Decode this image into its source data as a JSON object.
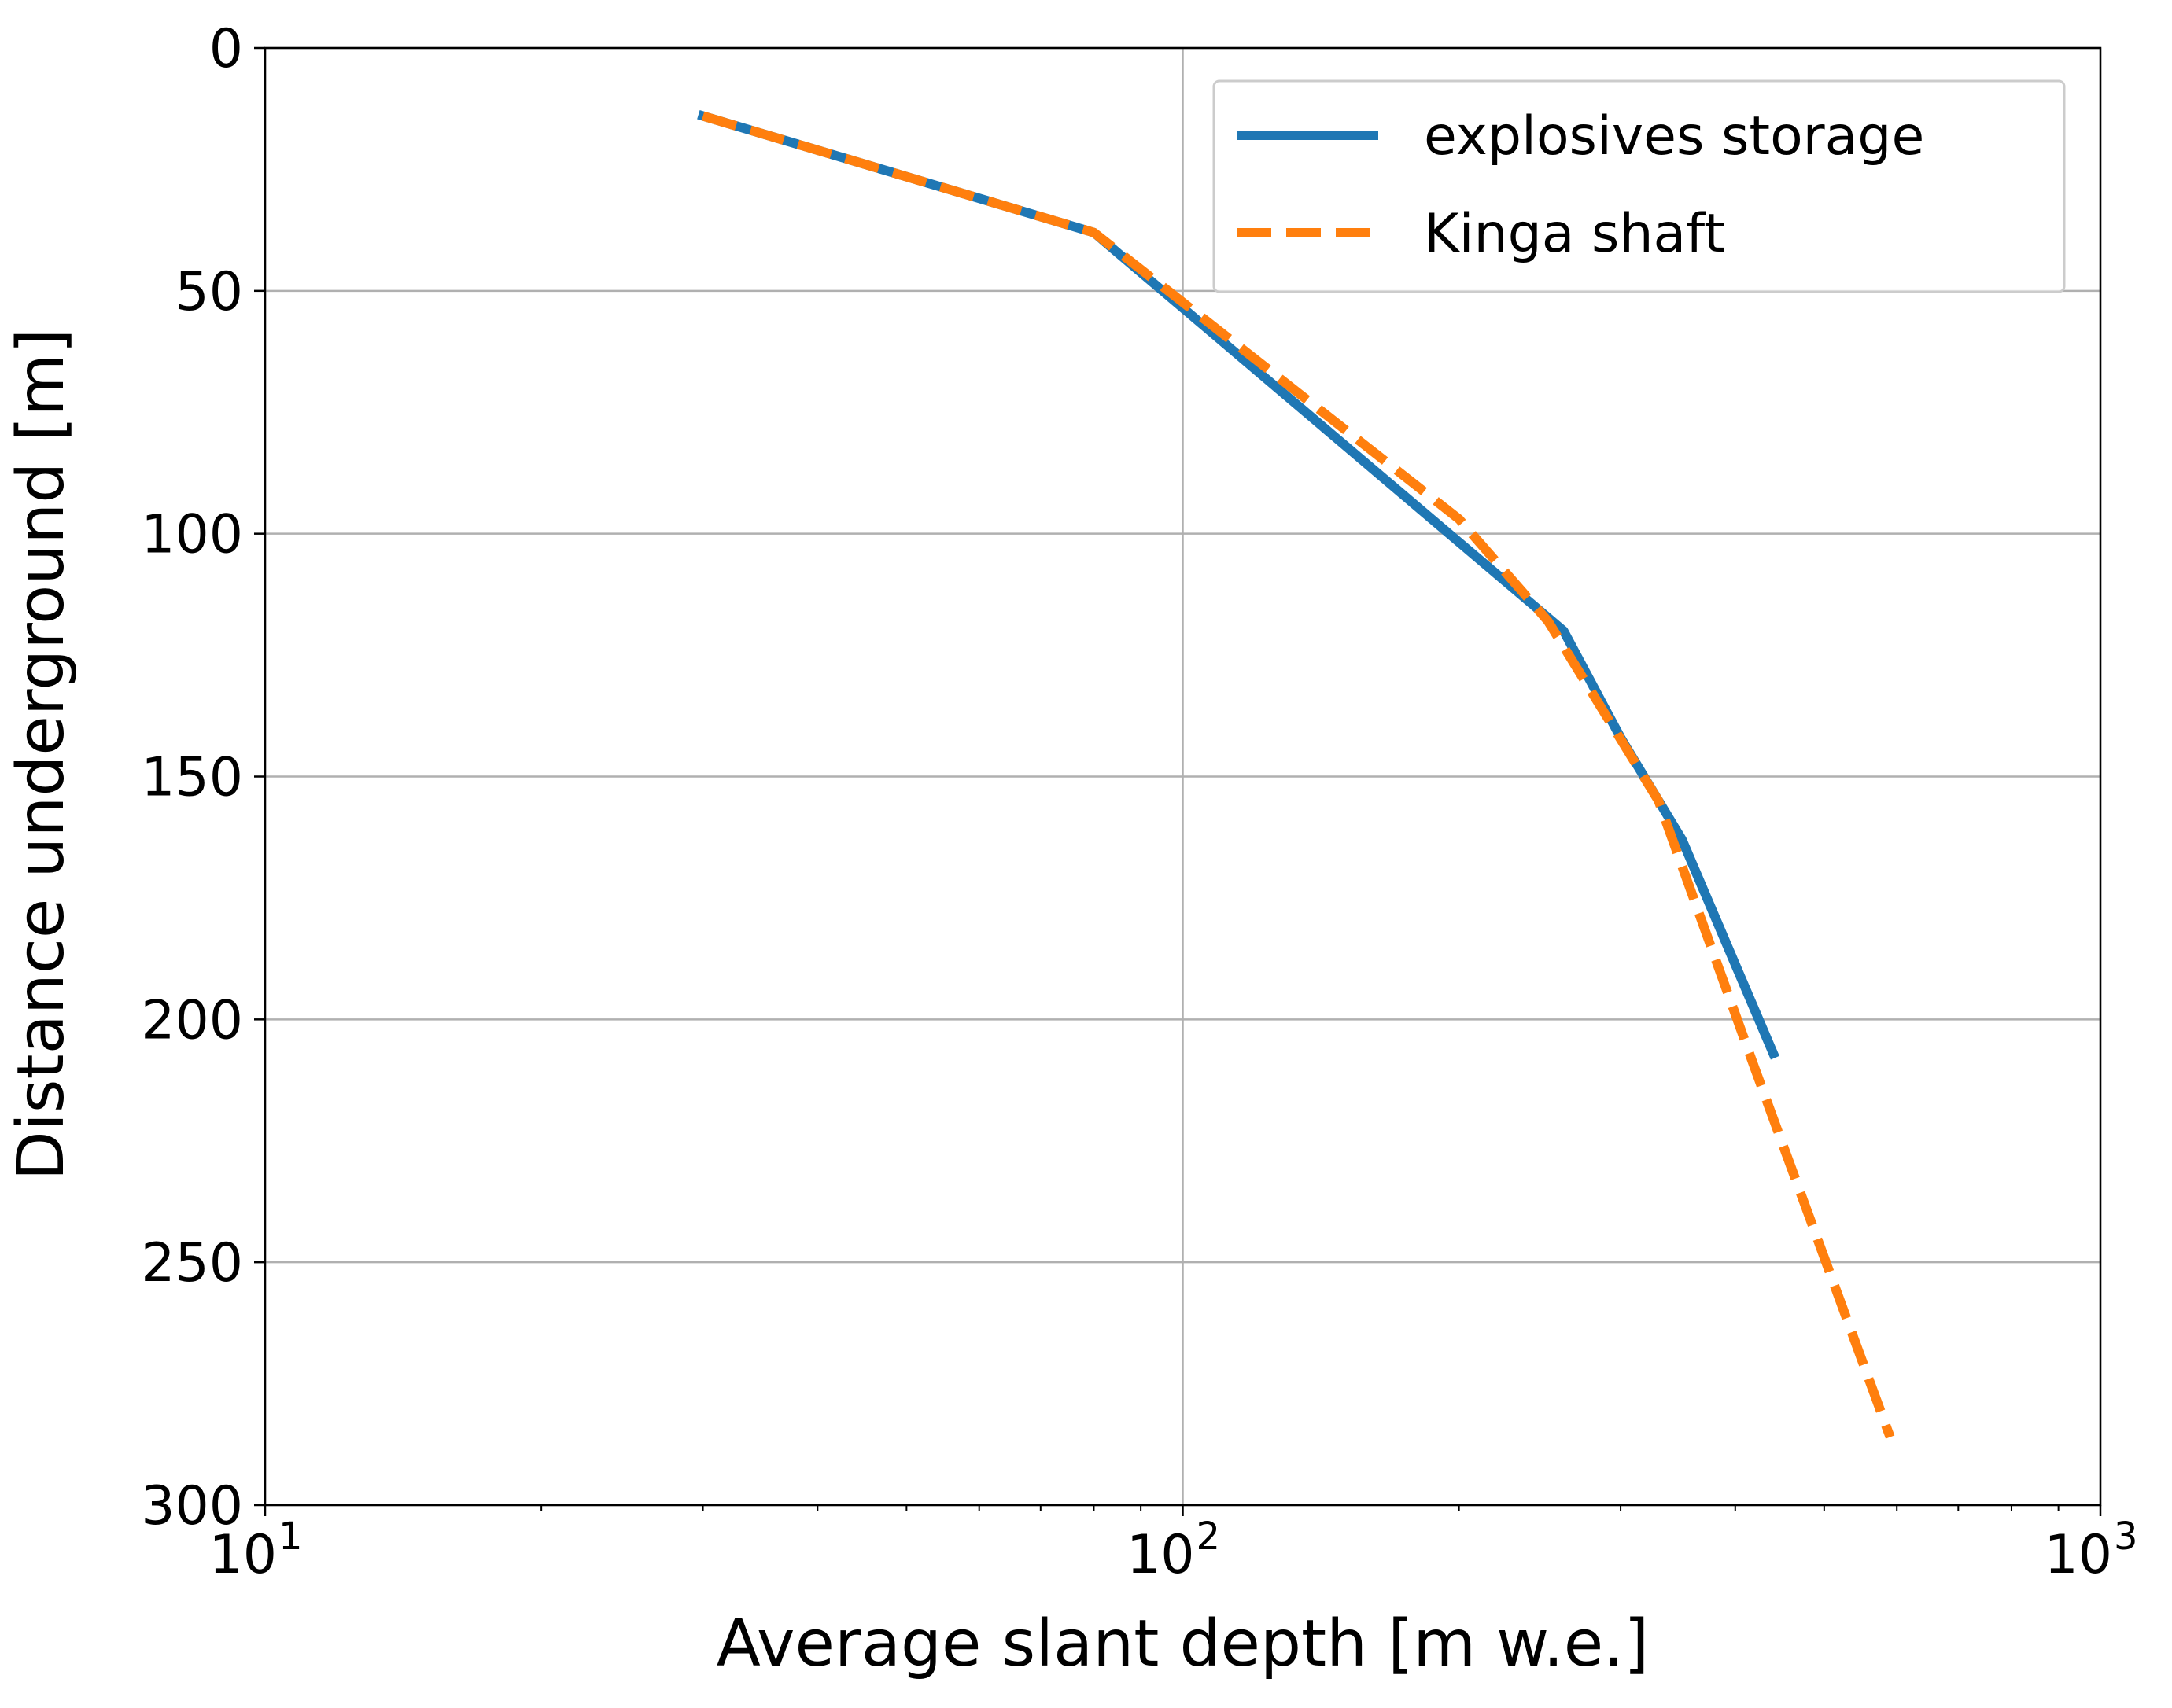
{
  "chart_data": {
    "type": "line",
    "xlabel": "Average slant depth [m w.e.]",
    "ylabel": "Distance underground [m]",
    "xscale": "log",
    "xlim": [
      10,
      1000
    ],
    "ylim": [
      300,
      0
    ],
    "y_inverted": true,
    "grid": true,
    "legend_position": "top-right",
    "x_ticks": [
      {
        "value": 10,
        "base": "10",
        "exp": "1"
      },
      {
        "value": 100,
        "base": "10",
        "exp": "2"
      },
      {
        "value": 1000,
        "base": "10",
        "exp": "3"
      }
    ],
    "y_ticks": [
      0,
      50,
      100,
      150,
      200,
      250,
      300
    ],
    "y_tick_labels": [
      "0",
      "50",
      "100",
      "150",
      "200",
      "250",
      "300"
    ],
    "series": [
      {
        "name": "explosives storage",
        "color": "#1f77b4",
        "style": "solid",
        "x": [
          30,
          80,
          260,
          300,
          350,
          440
        ],
        "y": [
          14,
          38,
          120,
          142,
          163,
          207
        ]
      },
      {
        "name": "Kinga shaft",
        "color": "#ff7f0e",
        "style": "dashed",
        "x": [
          30,
          80,
          200,
          250,
          330,
          420,
          590
        ],
        "y": [
          14,
          38,
          97,
          118,
          155,
          210,
          286
        ]
      }
    ]
  }
}
